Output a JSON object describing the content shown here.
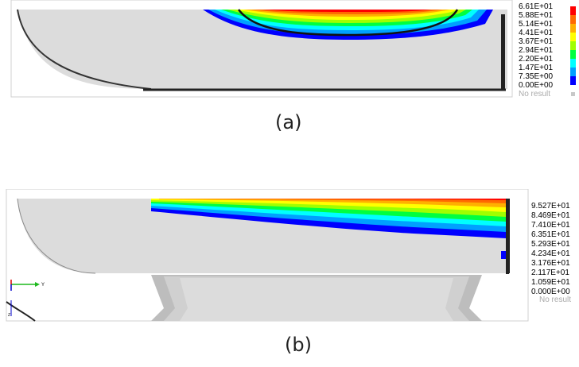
{
  "captions": {
    "a": "(a)",
    "b": "(b)"
  },
  "legend_a": {
    "values": [
      "6.61E+01",
      "5.88E+01",
      "5.14E+01",
      "4.41E+01",
      "3.67E+01",
      "2.94E+01",
      "2.20E+01",
      "1.47E+01",
      "7.35E+00",
      "0.00E+00"
    ],
    "no_result": "No result"
  },
  "legend_b": {
    "values": [
      "9.527E+01",
      "8.469E+01",
      "7.410E+01",
      "6.351E+01",
      "5.293E+01",
      "4.234E+01",
      "3.176E+01",
      "2.117E+01",
      "1.059E+01",
      "0.000E+00"
    ],
    "no_result": "No result"
  },
  "axis_triad": {
    "y_label": "Y",
    "z_label": "Z"
  },
  "colors": {
    "scale": [
      "#ff0000",
      "#ff6a00",
      "#ffb000",
      "#ffff00",
      "#a0ff00",
      "#00ff40",
      "#00ffff",
      "#00a0ff",
      "#0000ff"
    ],
    "body": "#dcdcdc",
    "outline": "#000000"
  }
}
